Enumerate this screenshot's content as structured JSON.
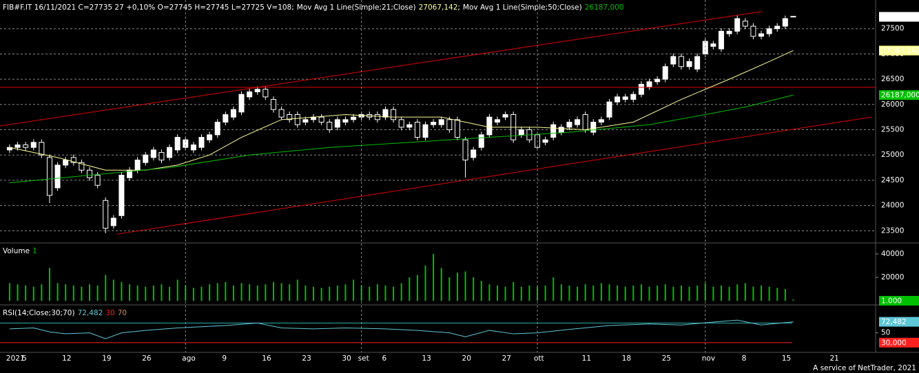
{
  "chart_data": [
    {
      "type": "candlestick",
      "title": "FIB#F.IT 16/11/2021 C=27735 27 +0,10% O=27745 H=27745 L=27725 V=108;",
      "separator": ";",
      "xlim": [
        -1.2,
        108.3
      ],
      "ylim": [
        23300,
        28000
      ],
      "yticks": [
        23500,
        24000,
        24500,
        25000,
        25500,
        26000,
        26500,
        27000,
        27500
      ],
      "grid": true,
      "colors": {
        "up": "#ffffff",
        "down": "#000000",
        "outline": "#ffffff"
      },
      "open": [
        25100,
        25150,
        25200,
        25150,
        25250,
        24950,
        24350,
        24800,
        24950,
        24850,
        24700,
        24600,
        24100,
        23600,
        23800,
        24550,
        24700,
        24850,
        24950,
        25050,
        24950,
        25100,
        25150,
        25100,
        25150,
        25300,
        25400,
        25650,
        25750,
        25850,
        26150,
        26250,
        26300,
        26100,
        25900,
        25800,
        25800,
        25650,
        25700,
        25750,
        25650,
        25550,
        25650,
        25700,
        25750,
        25800,
        25800,
        25750,
        25900,
        25700,
        25550,
        25650,
        25350,
        25600,
        25600,
        25700,
        25700,
        25300,
        24950,
        25150,
        25400,
        25650,
        25750,
        25800,
        25400,
        25500,
        25400,
        25250,
        25350,
        25450,
        25550,
        25600,
        25800,
        25450,
        25650,
        25750,
        26050,
        26100,
        26100,
        26200,
        26350,
        26450,
        26500,
        26800,
        26950,
        26750,
        26700,
        27000,
        27150,
        27100,
        27400,
        27450,
        27650,
        27550,
        27350,
        27400,
        27500,
        27550,
        27745
      ],
      "high": [
        25210,
        25260,
        25260,
        25310,
        25310,
        25010,
        24860,
        24960,
        25010,
        24910,
        24760,
        24660,
        24160,
        23810,
        24660,
        24760,
        24960,
        25060,
        25160,
        25110,
        25210,
        25410,
        25360,
        25260,
        25410,
        25460,
        25710,
        25860,
        25960,
        26260,
        26310,
        26360,
        26360,
        26160,
        25960,
        25860,
        25860,
        25760,
        25810,
        25810,
        25710,
        25760,
        25760,
        25810,
        25860,
        25860,
        25860,
        25960,
        25960,
        25760,
        25660,
        25710,
        25660,
        25710,
        25760,
        25760,
        25760,
        25360,
        25160,
        25460,
        25810,
        25760,
        25860,
        25860,
        25560,
        25560,
        25460,
        25360,
        25660,
        25610,
        25710,
        25760,
        25860,
        25710,
        25760,
        26110,
        26210,
        26210,
        26260,
        26460,
        26510,
        26560,
        26810,
        27010,
        27010,
        26910,
        27010,
        27310,
        27260,
        27510,
        27510,
        27760,
        27710,
        27610,
        27460,
        27560,
        27610,
        27760,
        27745
      ],
      "low": [
        25040,
        25090,
        25090,
        25090,
        24940,
        24050,
        24290,
        24740,
        24790,
        24640,
        24490,
        24340,
        23450,
        23540,
        23740,
        24490,
        24640,
        24790,
        24890,
        24840,
        24890,
        25040,
        25090,
        25040,
        25090,
        25240,
        25340,
        25590,
        25690,
        25790,
        26090,
        26190,
        26090,
        25840,
        25690,
        25640,
        25540,
        25590,
        25640,
        25590,
        25440,
        25490,
        25590,
        25640,
        25690,
        25690,
        25640,
        25690,
        25640,
        25490,
        25490,
        25290,
        25290,
        25540,
        25540,
        25440,
        25290,
        24550,
        24890,
        25090,
        25340,
        25590,
        25690,
        25240,
        25340,
        25240,
        25090,
        25190,
        25290,
        25390,
        25490,
        25540,
        25440,
        25390,
        25590,
        25690,
        25990,
        26040,
        26040,
        26140,
        26290,
        26390,
        26440,
        26740,
        26690,
        26690,
        26640,
        26940,
        27090,
        27040,
        27340,
        27390,
        27490,
        27290,
        27290,
        27340,
        27440,
        27490,
        27725
      ],
      "close": [
        25150,
        25200,
        25150,
        25250,
        25000,
        24200,
        24800,
        24900,
        24850,
        24700,
        24550,
        24400,
        23550,
        23750,
        24600,
        24700,
        24900,
        25000,
        25100,
        24900,
        25150,
        25350,
        25300,
        25200,
        25350,
        25400,
        25650,
        25800,
        25900,
        26200,
        26250,
        26300,
        26150,
        25900,
        25750,
        25700,
        25600,
        25700,
        25750,
        25650,
        25500,
        25700,
        25700,
        25750,
        25800,
        25750,
        25700,
        25900,
        25700,
        25550,
        25600,
        25350,
        25600,
        25650,
        25700,
        25500,
        25350,
        24900,
        25100,
        25400,
        25750,
        25700,
        25800,
        25300,
        25500,
        25300,
        25150,
        25300,
        25600,
        25550,
        25650,
        25700,
        25500,
        25650,
        25700,
        26050,
        26150,
        26150,
        26200,
        26400,
        26450,
        26500,
        26750,
        26950,
        26750,
        26850,
        26950,
        27250,
        27200,
        27450,
        27450,
        27700,
        27550,
        27350,
        27400,
        27500,
        27550,
        27700,
        27735
      ],
      "series": [
        {
          "name": "Mov Avg 1 Line(Simple;21;Close)",
          "color": "#ffff99",
          "x": [
            0,
            6,
            12,
            17,
            21,
            25,
            29,
            34,
            42,
            48,
            54,
            60,
            66,
            72,
            78,
            84,
            90,
            95,
            98
          ],
          "values": [
            25150,
            24950,
            24700,
            24700,
            24800,
            25000,
            25350,
            25700,
            25800,
            25750,
            25750,
            25550,
            25550,
            25500,
            25650,
            26100,
            26500,
            26850,
            27067.142
          ],
          "value_label": "27067,142"
        },
        {
          "name": "Mov Avg 1 Line(Simple;50;Close)",
          "color": "#00c000",
          "x": [
            0,
            10,
            20,
            30,
            40,
            50,
            60,
            70,
            80,
            87,
            92,
            98
          ],
          "values": [
            24450,
            24600,
            24750,
            25000,
            25150,
            25250,
            25350,
            25450,
            25600,
            25800,
            25950,
            26187
          ],
          "value_label": "26187,000"
        }
      ],
      "trendlines": [
        {
          "color": "#e00000",
          "x": [
            -1.2,
            94.1
          ],
          "values": [
            25575,
            27840
          ]
        },
        {
          "color": "#e00000",
          "x": [
            13.4,
            107.8
          ],
          "values": [
            23432,
            25750
          ]
        }
      ],
      "hlines": [
        {
          "color": "#e00000",
          "value": 26340
        }
      ]
    },
    {
      "type": "bar",
      "title": "Volume",
      "current": {
        "value": 1,
        "label": "1.000"
      },
      "color": "#00c000",
      "xlim": [
        -1.2,
        108.3
      ],
      "ylim": [
        0,
        47000
      ],
      "yticks": [
        20000,
        40000
      ],
      "values": [
        15000,
        14000,
        13000,
        12000,
        14000,
        28000,
        15000,
        14000,
        13000,
        12000,
        14000,
        13000,
        22000,
        18000,
        16000,
        14000,
        13000,
        12000,
        13000,
        14000,
        12000,
        18000,
        13000,
        11000,
        12000,
        14000,
        15000,
        16000,
        13000,
        15000,
        14000,
        13000,
        14000,
        16000,
        15000,
        14000,
        18000,
        13000,
        12000,
        11000,
        12000,
        13000,
        14000,
        18000,
        13000,
        12000,
        14000,
        13000,
        12000,
        15000,
        20000,
        22000,
        30000,
        40000,
        28000,
        20000,
        24000,
        25000,
        20000,
        17000,
        14000,
        13000,
        12000,
        16000,
        12000,
        13000,
        12000,
        13000,
        20000,
        14000,
        13000,
        12000,
        14000,
        13000,
        15000,
        14000,
        13000,
        12000,
        13000,
        14000,
        12000,
        13000,
        14000,
        12000,
        13000,
        12000,
        13000,
        15000,
        12000,
        13000,
        12000,
        14000,
        15000,
        12000,
        13000,
        12000,
        11000,
        10000,
        1000
      ]
    },
    {
      "type": "line",
      "title": "RSI(14;Close;30;70)",
      "current": {
        "value": 72.482,
        "label": "72,482"
      },
      "xlim": [
        -1.2,
        108.3
      ],
      "ylim": [
        13,
        100
      ],
      "yticks": [
        50
      ],
      "levels": [
        {
          "value": 30,
          "label": "30,000",
          "color": "#ff2020"
        },
        {
          "value": 70,
          "color": "#30b0b0"
        }
      ],
      "series": [
        {
          "color": "#5fc8d8",
          "x": [
            0,
            3,
            5,
            7,
            10,
            12,
            14,
            17,
            21,
            27,
            31,
            34,
            38,
            42,
            47,
            51,
            55,
            57,
            60,
            63,
            66,
            70,
            75,
            80,
            84,
            88,
            91,
            94,
            98
          ],
          "values": [
            58,
            60,
            52,
            48,
            50,
            38,
            50,
            55,
            60,
            65,
            70,
            60,
            58,
            60,
            58,
            55,
            50,
            42,
            55,
            48,
            50,
            57,
            65,
            68,
            66,
            72,
            76,
            66,
            72.482
          ]
        }
      ],
      "xticks": [
        {
          "value": 0,
          "label": "2021"
        },
        {
          "value": 2,
          "label": "5"
        },
        {
          "value": 7,
          "label": "12"
        },
        {
          "value": 12,
          "label": "19"
        },
        {
          "value": 17,
          "label": "26"
        },
        {
          "value": 22,
          "label": "ago",
          "grid": true
        },
        {
          "value": 27,
          "label": "9"
        },
        {
          "value": 32,
          "label": "16"
        },
        {
          "value": 37,
          "label": "23"
        },
        {
          "value": 42,
          "label": "30"
        },
        {
          "value": 44,
          "label": "set",
          "grid": true
        },
        {
          "value": 47,
          "label": "6"
        },
        {
          "value": 52,
          "label": "13"
        },
        {
          "value": 57,
          "label": "20"
        },
        {
          "value": 62,
          "label": "27"
        },
        {
          "value": 66,
          "label": "ott",
          "grid": true
        },
        {
          "value": 72,
          "label": "11"
        },
        {
          "value": 77,
          "label": "18"
        },
        {
          "value": 82,
          "label": "25"
        },
        {
          "value": 87,
          "label": "nov",
          "grid": true
        },
        {
          "value": 92,
          "label": "8"
        },
        {
          "value": 97,
          "label": "15"
        },
        {
          "value": 103,
          "label": "21"
        }
      ]
    }
  ],
  "footer": "A service of NetTrader, 2021"
}
